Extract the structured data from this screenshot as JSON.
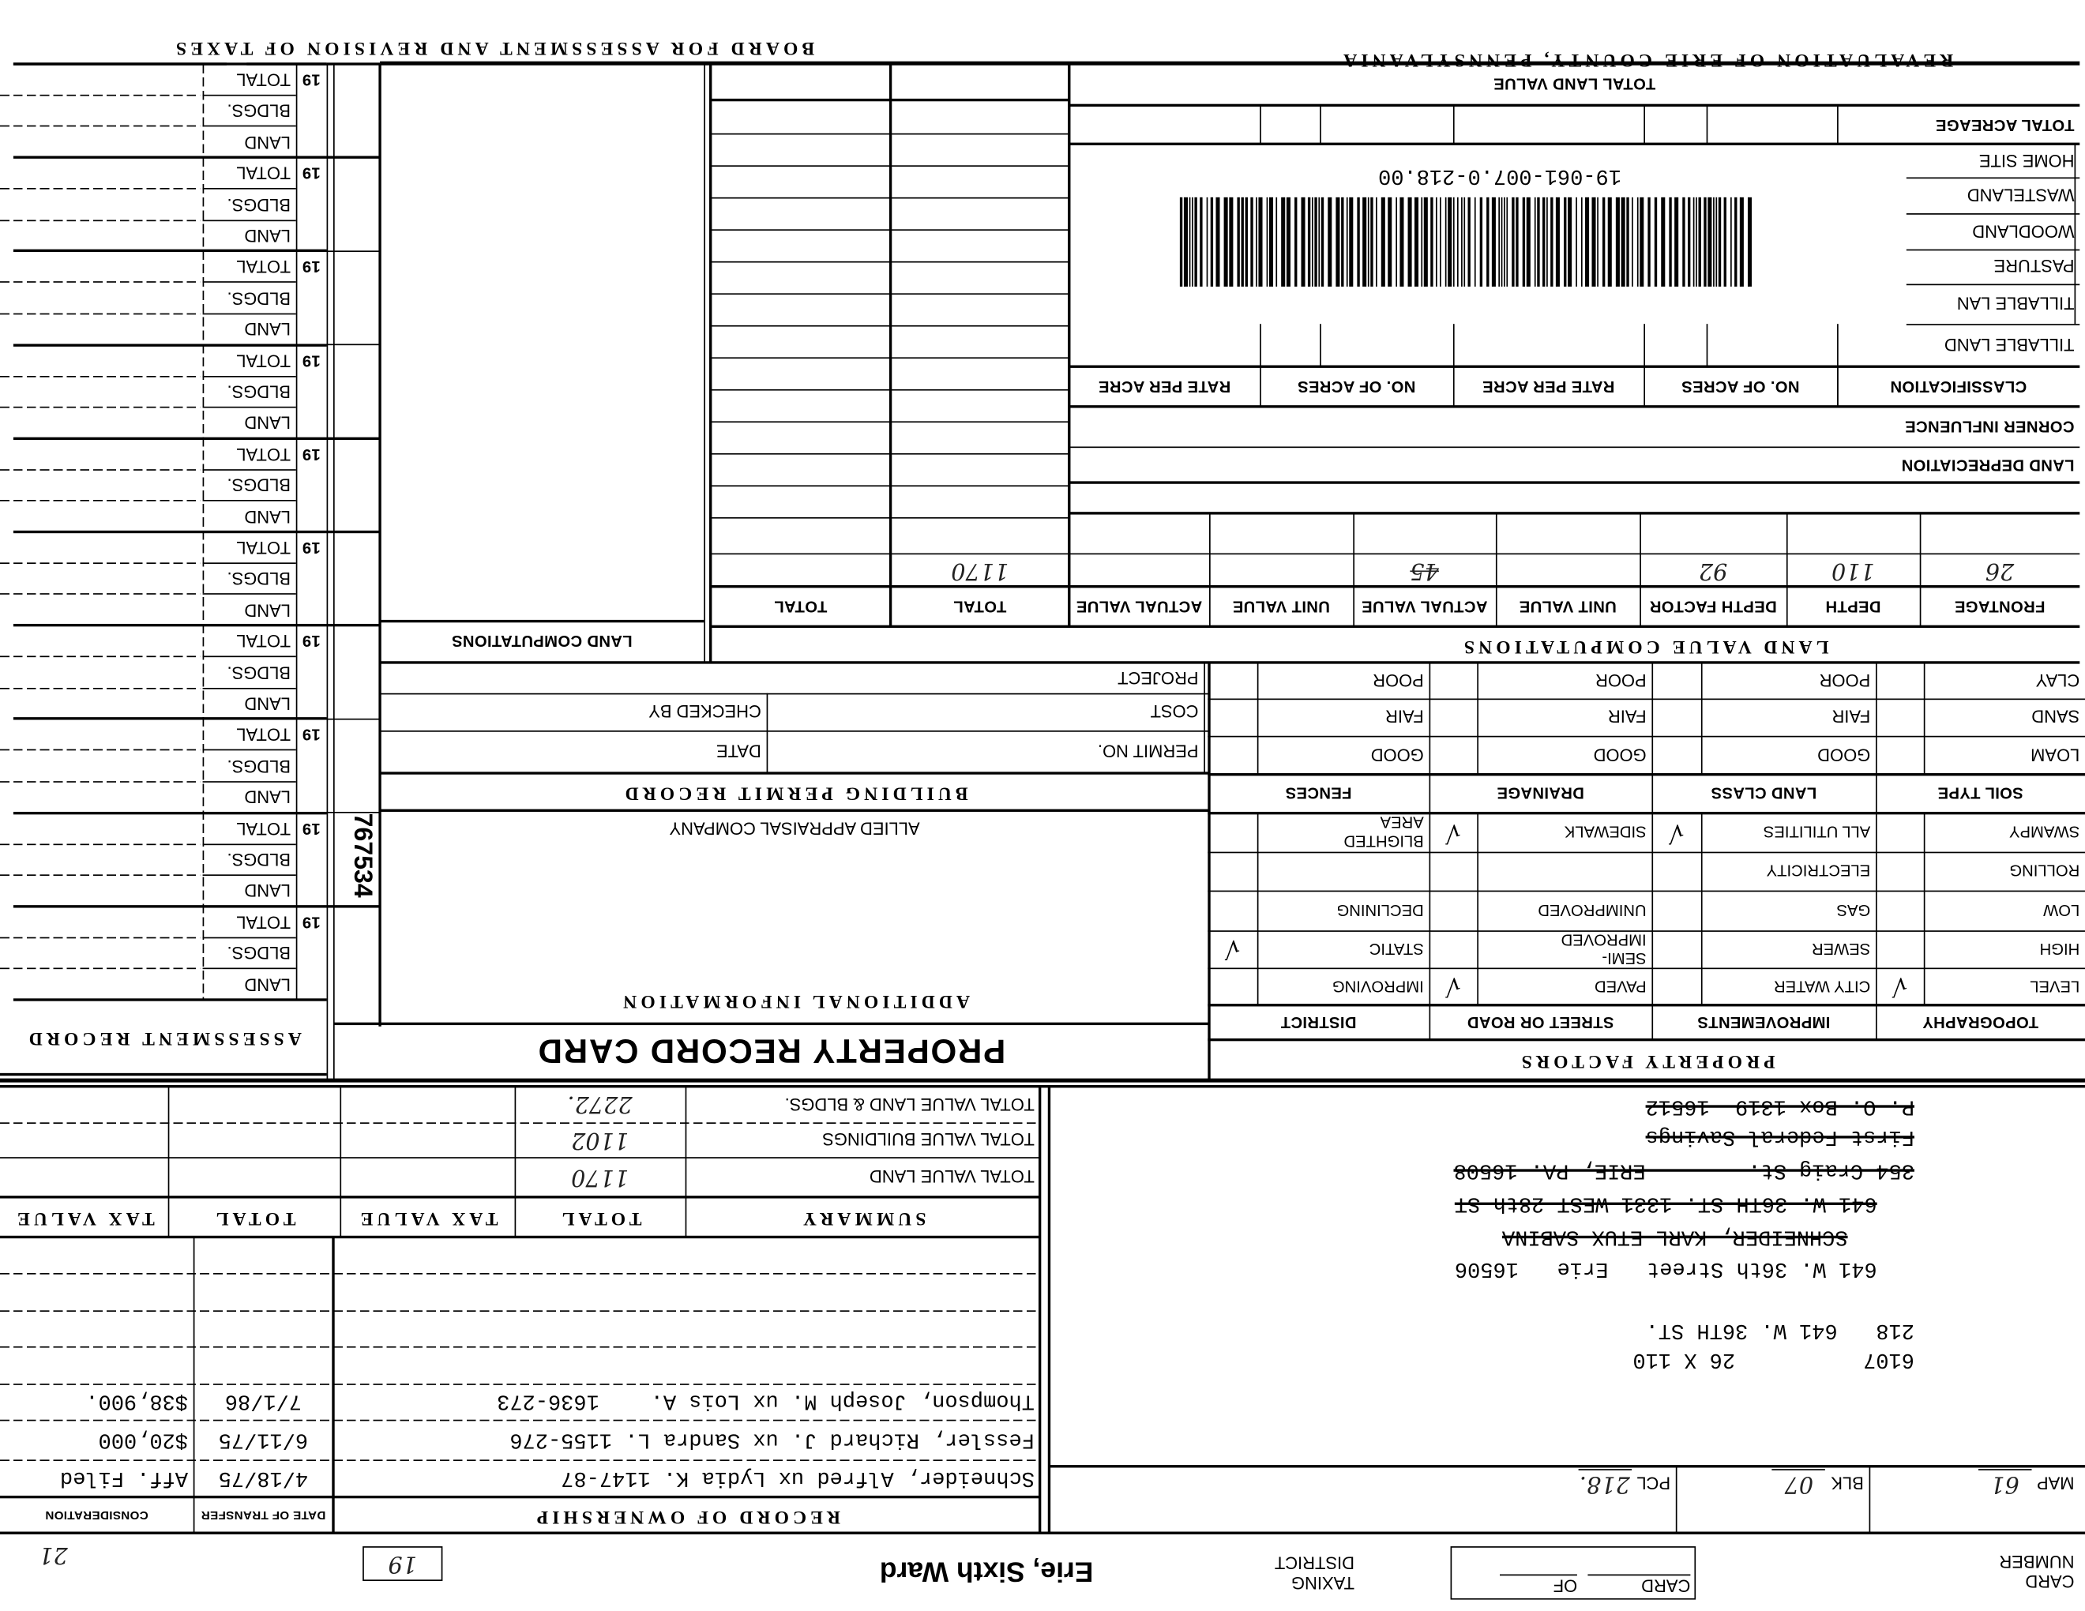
{
  "header": {
    "county_title": "REVALUATION OF ERIE COUNTY, PENNSYLVANIA",
    "board_title": "BOARD FOR ASSESSMENT AND REVISION OF TAXES"
  },
  "barcode": {
    "number": "19-061-007.0-218.00"
  },
  "land": {
    "total_land_value": "TOTAL LAND VALUE",
    "total_acreage": "TOTAL ACREAGE",
    "classification_rows": [
      "TILLABLE LAND",
      "TILLABLE LAN",
      "PASTURE",
      "WOODLAND",
      "WASTELAND",
      "HOME SITE"
    ],
    "classification_header": [
      "CLASSIFICATION",
      "NO. OF ACRES",
      "RATE PER ACRE",
      "NO. OF ACRES",
      "RATE PER ACRE"
    ],
    "corner_influence": "CORNER INFLUENCE",
    "land_depreciation": "LAND DEPRECIATION",
    "computation_headers": [
      "FRONTAGE",
      "DEPTH",
      "DEPTH FACTOR",
      "UNIT VALUE",
      "ACTUAL VALUE",
      "UNIT VALUE",
      "ACTUAL VALUE",
      "TOTAL",
      "TOTAL"
    ],
    "computation_row": [
      "26",
      "110",
      "92",
      "",
      "45",
      "",
      "",
      "1170",
      ""
    ],
    "land_value_computations": "LAND VALUE COMPUTATIONS",
    "land_computations": "LAND COMPUTATIONS"
  },
  "property_factors": {
    "title": "PROPERTY FACTORS",
    "headers": [
      "TOPOGRAPHY",
      "IMPROVEMENTS",
      "STREET OR ROAD",
      "DISTRICT"
    ],
    "rows": [
      [
        {
          "label": "LEVEL",
          "checked": true
        },
        {
          "label": "CITY WATER",
          "checked": false
        },
        {
          "label": "PAVED",
          "checked": true
        },
        {
          "label": "IMPROVING",
          "checked": false
        }
      ],
      [
        {
          "label": "HIGH",
          "checked": false
        },
        {
          "label": "SEWER",
          "checked": false
        },
        {
          "label": "SEMI-\nIMPROVED",
          "checked": false
        },
        {
          "label": "STATIC",
          "checked": true
        }
      ],
      [
        {
          "label": "LOW",
          "checked": false
        },
        {
          "label": "GAS",
          "checked": false
        },
        {
          "label": "UNIMPROVED",
          "checked": false
        },
        {
          "label": "DECLINING",
          "checked": false
        }
      ],
      [
        {
          "label": "ROLLING",
          "checked": false
        },
        {
          "label": "ELECTRICITY",
          "checked": false
        },
        {
          "label": "",
          "checked": false
        },
        {
          "label": "",
          "checked": false
        }
      ],
      [
        {
          "label": "SWAMPY",
          "checked": false
        },
        {
          "label": "ALL UTILITIES",
          "checked": true
        },
        {
          "label": "SIDEWALK",
          "checked": true
        },
        {
          "label": "BLIGHTED\nAREA",
          "checked": false
        }
      ]
    ],
    "soil_headers": [
      "SOIL TYPE",
      "LAND CLASS",
      "DRAINAGE",
      "FENCES"
    ],
    "soil_rows": [
      [
        "LOAM",
        "GOOD",
        "GOOD",
        "GOOD"
      ],
      [
        "SAND",
        "FAIR",
        "FAIR",
        "FAIR"
      ],
      [
        "CLAY",
        "POOR",
        "POOR",
        "POOR"
      ]
    ]
  },
  "building_permit": {
    "title": "BUILDING PERMIT RECORD",
    "project": "PROJECT",
    "cost": "COST",
    "permit_no": "PERMIT NO.",
    "checked_by": "CHECKED BY",
    "date": "DATE"
  },
  "additional_info": {
    "title": "ADDITIONAL INFORMATION",
    "company": "ALLIED APPRAISAL COMPANY",
    "stamp": "767534"
  },
  "card_title": "PROPERTY RECORD CARD",
  "assessment_record": {
    "title": "ASSESSMENT RECORD",
    "year_prefix": "19",
    "row_labels": [
      "LAND",
      "BLDGS.",
      "TOTAL"
    ]
  },
  "summary": {
    "title": "SUMMARY",
    "columns": [
      "TOTAL",
      "TAX VALUE",
      "TOTAL",
      "TAX VALUE"
    ],
    "rows": [
      {
        "label": "TOTAL VALUE LAND",
        "total": "1170"
      },
      {
        "label": "TOTAL VALUE BUILDINGS",
        "total": "1102"
      },
      {
        "label": "TOTAL VALUE LAND & BLDGS.",
        "total": "2272."
      }
    ]
  },
  "ownership": {
    "title": "RECORD OF OWNERSHIP",
    "date_header": "DATE OF TRANSFER",
    "consideration_header": "CONSIDERATION",
    "rows": [
      {
        "owner": "Schneider, Alfred ux Lydia K. 1147-87",
        "date": "4/18/75",
        "consideration": "Aff. Filed"
      },
      {
        "owner": "Fessler, Richard J. ux Sandra L. 1155-276",
        "date": "6/11/75",
        "consideration": "$20,000"
      },
      {
        "owner": "Thompson, Joseph M. ux Lois A.    1636-273",
        "date": "7/1/86",
        "consideration": "$38,900."
      }
    ]
  },
  "address_lines": [
    {
      "text": "6107          26 X 110",
      "struck": false
    },
    {
      "text": "218   641 W. 36TH ST.",
      "struck": false
    },
    {
      "text": "641 W. 36th Street   Erie   16506",
      "struck": false
    },
    {
      "text": "SCHNEIDER, KARL ETUX SABINA",
      "struck": true
    },
    {
      "text": "641 W. 36TH ST. 1331 WEST 28th ST",
      "struck": true
    },
    {
      "text": "354 Craig St.        ERIE, PA. 16508",
      "struck": true
    },
    {
      "text": "First Federal Savings",
      "struck": true
    },
    {
      "text": "P. O. Box 1319  16512",
      "struck": true
    }
  ],
  "parcel": {
    "map_label": "MAP",
    "map": "61",
    "blk_label": "BLK",
    "blk": "07",
    "pcl_label": "PCL",
    "pcl": "218."
  },
  "card_footer": {
    "card_number_label": "CARD\nNUMBER",
    "card_label": "CARD",
    "of_label": "OF",
    "taxing_district_label": "TAXING\nDISTRICT",
    "taxing_district": "Erie, Sixth Ward",
    "ward_box": "19",
    "note": "21"
  }
}
